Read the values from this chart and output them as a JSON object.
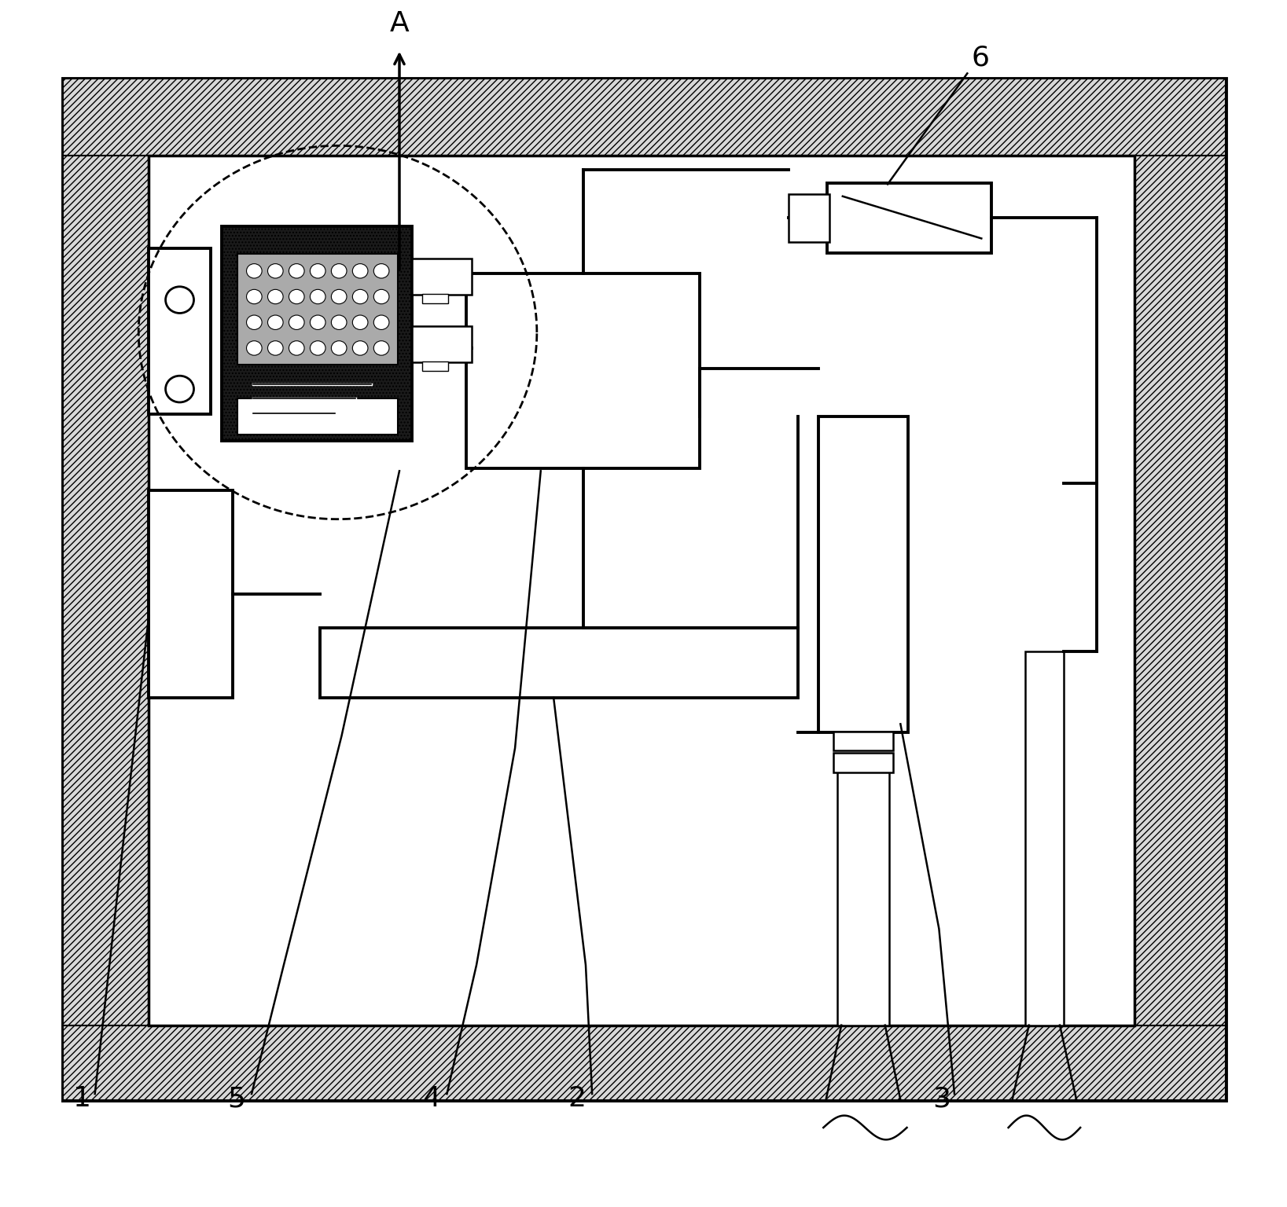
{
  "fig_width": 16.37,
  "fig_height": 15.36,
  "dpi": 100,
  "bg": "#ffffff",
  "lc": "#000000",
  "font_size": 26
}
